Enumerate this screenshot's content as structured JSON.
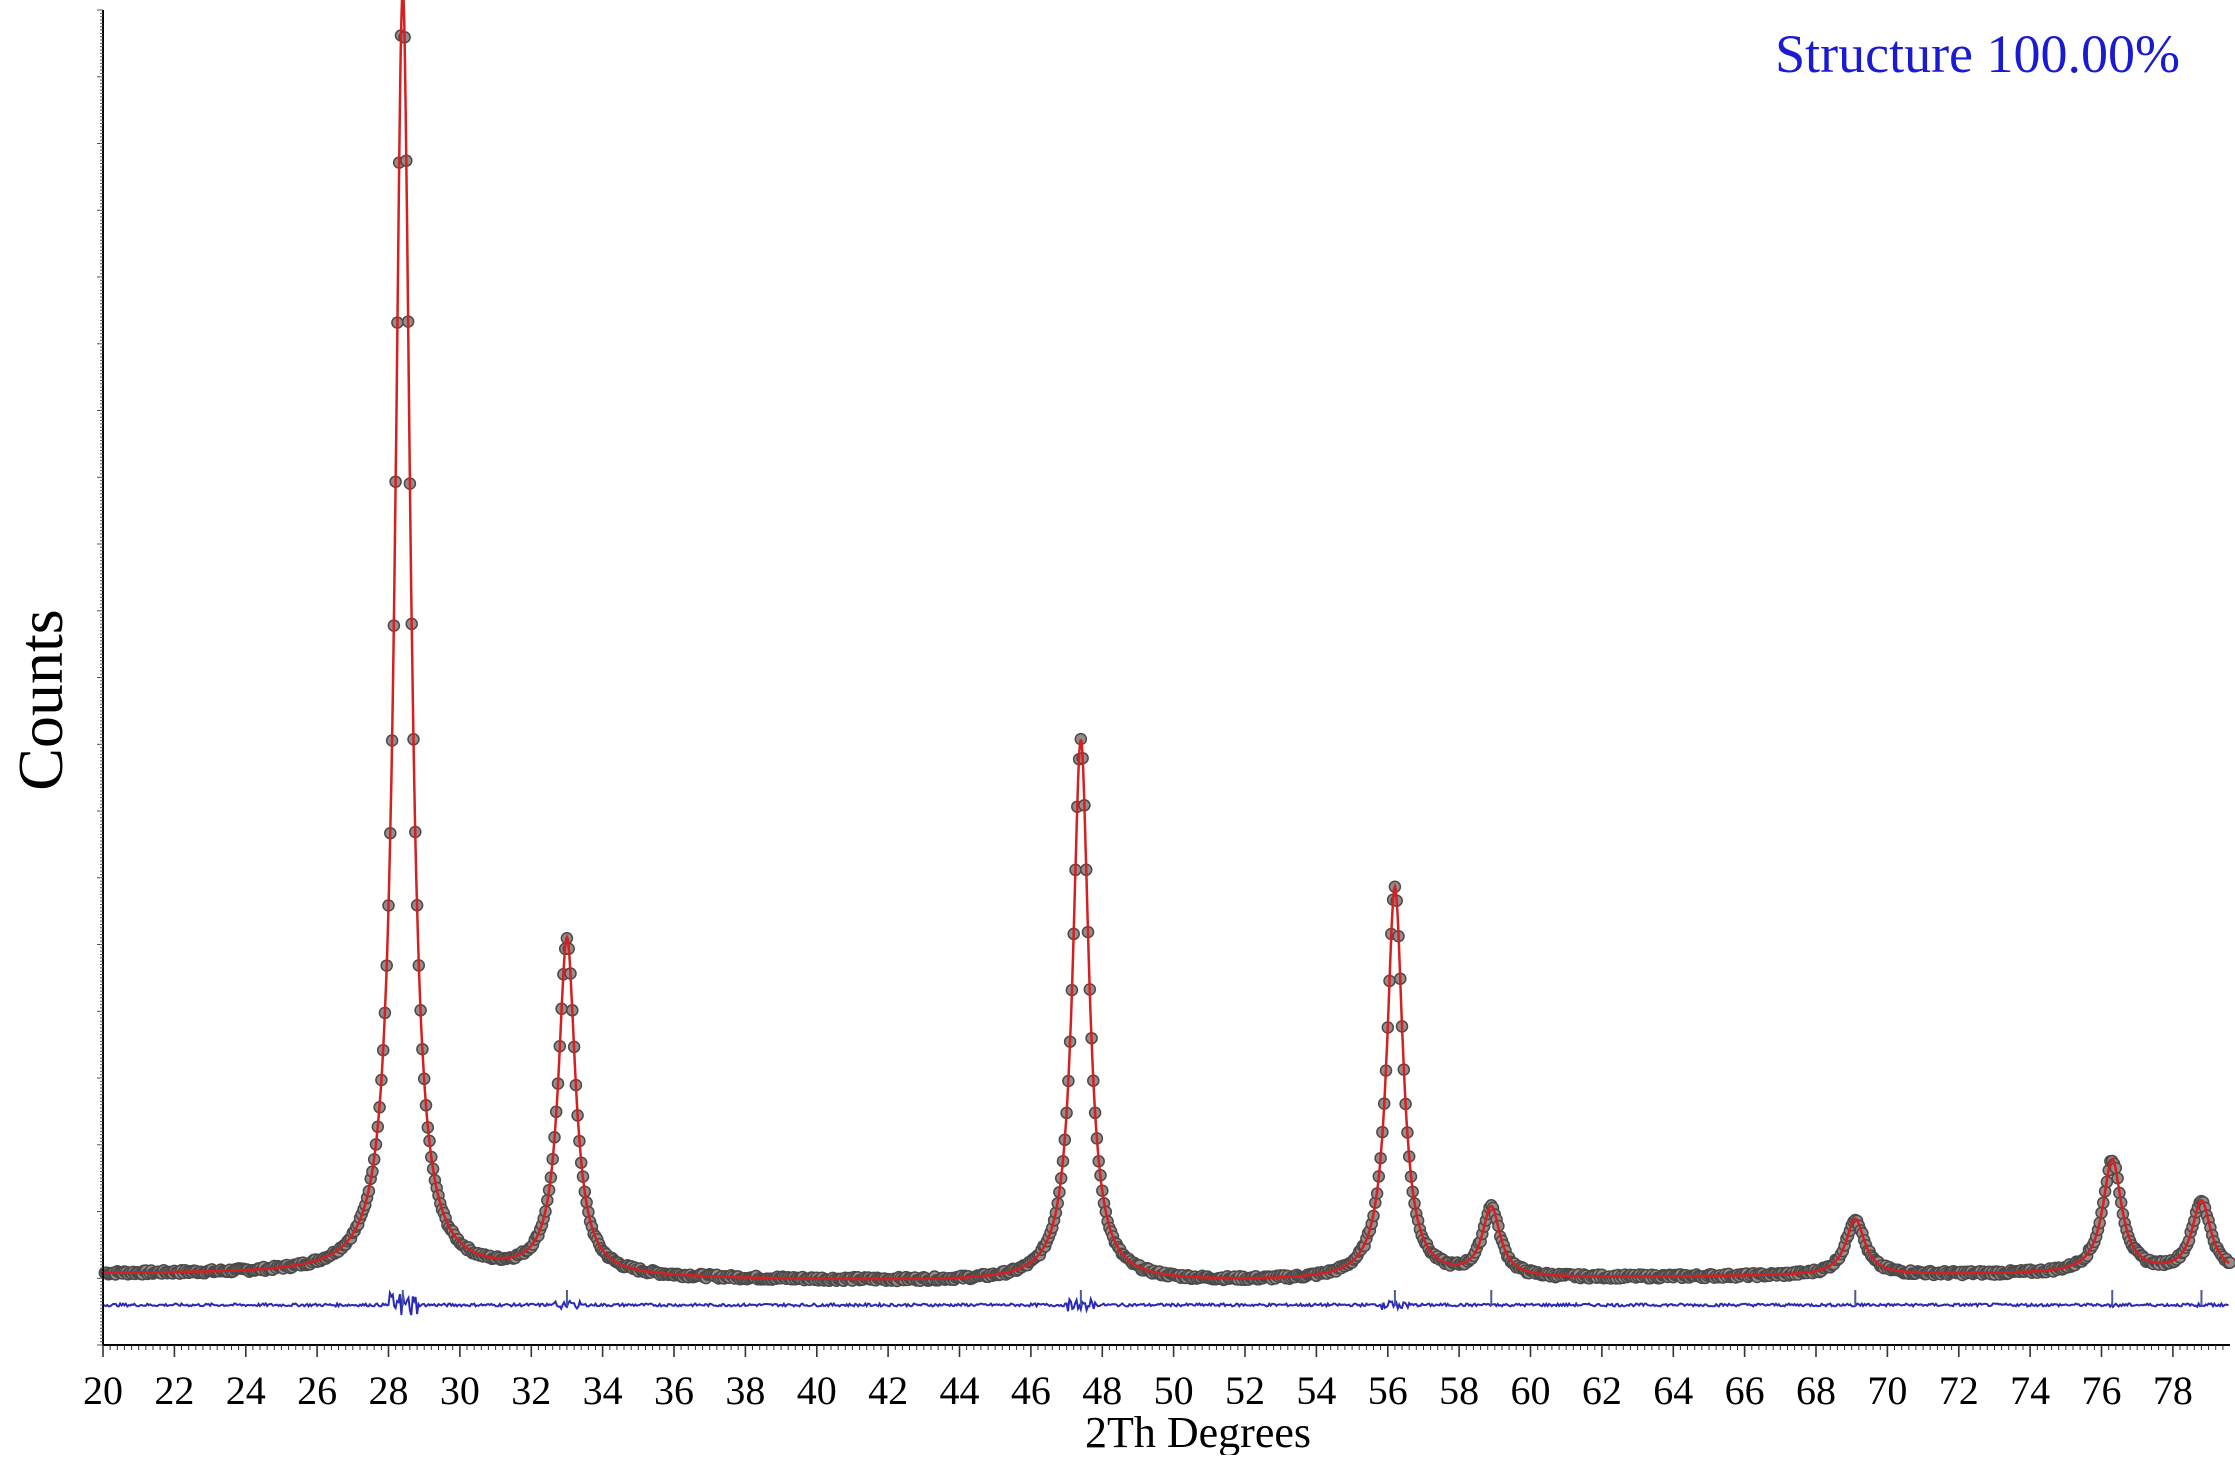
{
  "chart_data": {
    "type": "line",
    "title": "",
    "annotation": "Structure 100.00%",
    "xlabel": "2Th Degrees",
    "ylabel": "Counts",
    "xlim": [
      20,
      79.6
    ],
    "ylim": [
      0,
      1000
    ],
    "x_ticks": [
      "20",
      "22",
      "24",
      "26",
      "28",
      "30",
      "32",
      "34",
      "36",
      "38",
      "40",
      "42",
      "44",
      "46",
      "48",
      "50",
      "52",
      "54",
      "56",
      "58",
      "60",
      "62",
      "64",
      "66",
      "68",
      "70",
      "72",
      "74",
      "76",
      "78"
    ],
    "y_tick_labels_shown": false,
    "grid": false,
    "legend": "none",
    "series": [
      {
        "role": "observed",
        "marker": "circle",
        "color": "#4a4a4a",
        "background": 50,
        "peaks": [
          {
            "position": 28.4,
            "intensity": 963,
            "width": 0.32
          },
          {
            "position": 33.0,
            "intensity": 252,
            "width": 0.36
          },
          {
            "position": 47.4,
            "intensity": 406,
            "width": 0.34
          },
          {
            "position": 56.2,
            "intensity": 294,
            "width": 0.34
          },
          {
            "position": 58.9,
            "intensity": 52,
            "width": 0.38
          },
          {
            "position": 69.1,
            "intensity": 42,
            "width": 0.4
          },
          {
            "position": 76.3,
            "intensity": 85,
            "width": 0.4
          },
          {
            "position": 78.8,
            "intensity": 54,
            "width": 0.4
          }
        ]
      },
      {
        "role": "calculated",
        "marker": "none",
        "color": "#d42020"
      },
      {
        "role": "difference",
        "marker": "none",
        "color": "#2a2ab8",
        "offset": 30
      }
    ],
    "bragg_ticks": [
      28.4,
      33.0,
      47.4,
      56.2,
      58.9,
      69.1,
      76.3,
      78.8
    ],
    "colors": {
      "annotation": "#1a1ad0",
      "axis": "#000000",
      "bragg_tick": "#4a5aa0"
    }
  }
}
